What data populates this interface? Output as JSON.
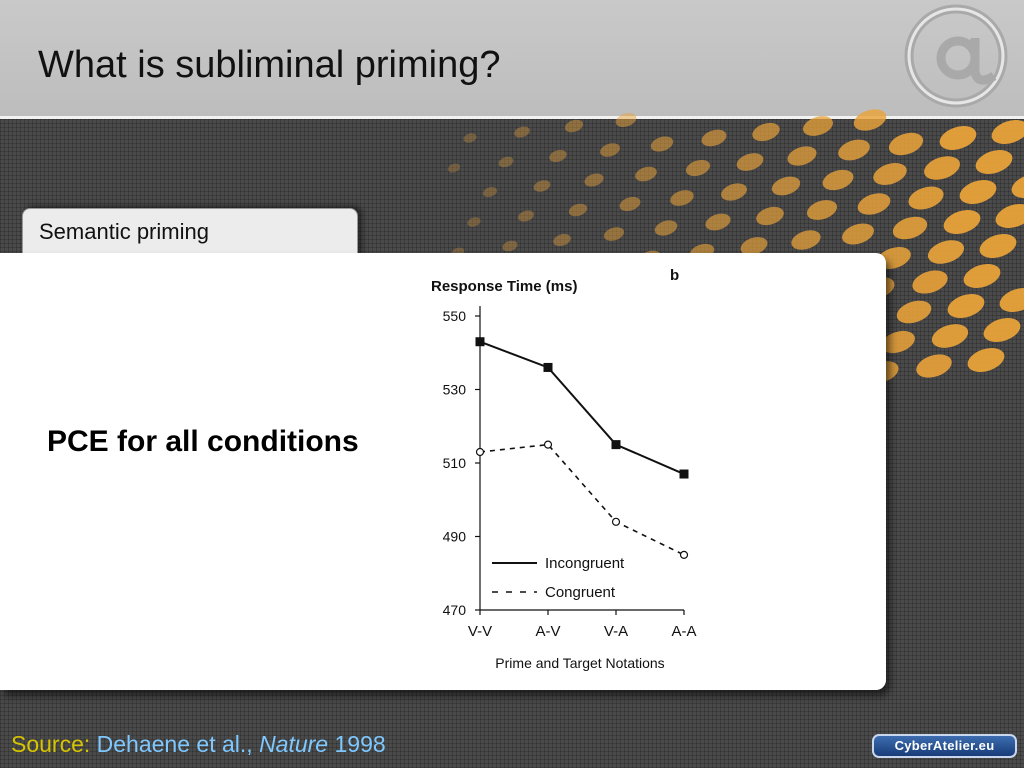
{
  "header": {
    "title": "What is subliminal priming?"
  },
  "tab": {
    "label": "Semantic priming"
  },
  "main": {
    "statement": "PCE for all conditions"
  },
  "source": {
    "label": "Source:",
    "authors": "Dehaene et al.,",
    "journal": "Nature",
    "year": "1998"
  },
  "badge": {
    "text": "CyberAtelier.eu"
  },
  "logo": {
    "icon": "at-sign-icon"
  },
  "colors": {
    "accent_dots": "#e8a23a",
    "source_label": "#d6c400",
    "source_text": "#7ec8ff"
  },
  "chart_data": {
    "type": "line",
    "panel_letter": "b",
    "title": "Response Time (ms)",
    "xlabel": "Prime and Target Notations",
    "ylabel": "",
    "categories": [
      "V-V",
      "A-V",
      "V-A",
      "A-A"
    ],
    "ylim": [
      470,
      550
    ],
    "yticks": [
      550,
      530,
      510,
      490,
      470
    ],
    "series": [
      {
        "name": "Incongruent",
        "values": [
          543,
          536,
          515,
          507
        ],
        "style": "solid",
        "marker": "filled-square"
      },
      {
        "name": "Congruent",
        "values": [
          513,
          515,
          494,
          485
        ],
        "style": "dashed",
        "marker": "open-circle"
      }
    ],
    "legend_position": "bottom-left",
    "grid": false
  }
}
